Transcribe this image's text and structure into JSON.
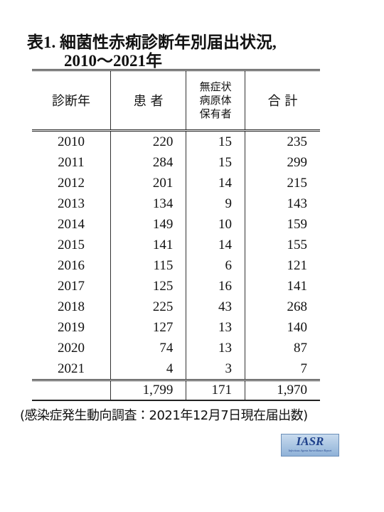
{
  "title": {
    "line1": "表1. 細菌性赤痢診断年別届出状況,",
    "line2": "2010〜2021年"
  },
  "table": {
    "header": [
      "診断年",
      "患 者",
      [
        "無症状",
        "病原体",
        "保有者"
      ],
      "合 計"
    ],
    "rows": [
      [
        "2010",
        220,
        15,
        235
      ],
      [
        "2011",
        284,
        15,
        299
      ],
      [
        "2012",
        201,
        14,
        215
      ],
      [
        "2013",
        134,
        9,
        143
      ],
      [
        "2014",
        149,
        10,
        159
      ],
      [
        "2015",
        141,
        14,
        155
      ],
      [
        "2016",
        115,
        6,
        121
      ],
      [
        "2017",
        125,
        16,
        141
      ],
      [
        "2018",
        225,
        43,
        268
      ],
      [
        "2019",
        127,
        13,
        140
      ],
      [
        "2020",
        74,
        13,
        87
      ],
      [
        "2021",
        4,
        3,
        7
      ]
    ],
    "total": [
      "1,799",
      "171",
      "1,970"
    ]
  },
  "footnote": "(感染症発生動向調査：2021年12月7日現在届出数)",
  "logo": {
    "name": "IASR",
    "subtitle": "Infectious Agents Surveillance Report"
  }
}
